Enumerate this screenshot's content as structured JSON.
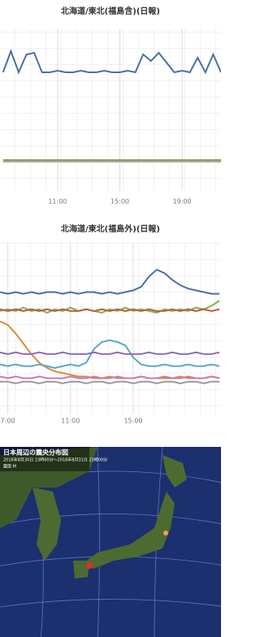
{
  "chart_data": [
    {
      "type": "line",
      "title": "北海道/東北(福島含)(日報)",
      "x": [
        7.5,
        8,
        8.5,
        9,
        9.5,
        10,
        10.5,
        11,
        11.5,
        12,
        12.5,
        13,
        13.5,
        14,
        14.5,
        15,
        15.5,
        16,
        16.5,
        17,
        17.5,
        18,
        18.5,
        19,
        19.5,
        20,
        20.5,
        21,
        21.5
      ],
      "xlim": [
        7.3,
        21.5
      ],
      "xticks": [
        {
          "value": 11,
          "label": "11:00"
        },
        {
          "value": 15,
          "label": "15:00"
        },
        {
          "value": 19,
          "label": "19:00"
        }
      ],
      "ylim": [
        0,
        100
      ],
      "grid": true,
      "series": [
        {
          "color": "#4a6fa5",
          "values": [
            73,
            86,
            73,
            84,
            85,
            73,
            73,
            74,
            73,
            73,
            74,
            73,
            73,
            74,
            73,
            73,
            74,
            73,
            84,
            80,
            85,
            79,
            73,
            74,
            73,
            82,
            73,
            84,
            73
          ]
        },
        {
          "color": "#9a9a5a",
          "values": [
            19,
            19,
            19,
            19,
            19,
            19,
            19,
            19,
            19,
            19,
            19,
            19,
            19,
            19,
            19,
            19,
            19,
            19,
            19,
            19,
            19,
            19,
            19,
            19,
            19,
            19,
            19,
            19,
            19
          ]
        },
        {
          "color": "#aaaaaa",
          "values": [
            18,
            18,
            18,
            18,
            18,
            18,
            18,
            18,
            18,
            18,
            18,
            18,
            18,
            18,
            18,
            18,
            18,
            18,
            18,
            18,
            18,
            18,
            18,
            18,
            18,
            18,
            18,
            18,
            18
          ]
        }
      ]
    },
    {
      "type": "line",
      "title": "北海道/東北(福島外)(日報)",
      "x": [
        6.5,
        7,
        7.5,
        8,
        8.5,
        9,
        9.5,
        10,
        10.5,
        11,
        11.5,
        12,
        12.5,
        13,
        13.5,
        14,
        14.5,
        15,
        15.5,
        16,
        16.5,
        17,
        17.5,
        18,
        18.5,
        19,
        19.5,
        20,
        20.5
      ],
      "xlim": [
        6.5,
        20.6
      ],
      "xticks": [
        {
          "value": 7,
          "label": "7:00"
        },
        {
          "value": 11,
          "label": "11:00"
        },
        {
          "value": 15,
          "label": "15:00"
        }
      ],
      "ylim": [
        0,
        100
      ],
      "grid": true,
      "series": [
        {
          "color": "#4a6fa5",
          "values": [
            71,
            70,
            71,
            70,
            71,
            70,
            71,
            71,
            70,
            71,
            70,
            71,
            71,
            70,
            71,
            70,
            71,
            72,
            74,
            80,
            84,
            82,
            78,
            75,
            73,
            72,
            71,
            70,
            70
          ]
        },
        {
          "color": "#8ab04a",
          "values": [
            60,
            61,
            60,
            62,
            60,
            61,
            59,
            61,
            60,
            62,
            60,
            61,
            60,
            59,
            61,
            60,
            62,
            60,
            61,
            60,
            59,
            61,
            60,
            61,
            60,
            62,
            61,
            63,
            66
          ]
        },
        {
          "color": "#b85c3c",
          "values": [
            61,
            60,
            61,
            60,
            61,
            60,
            61,
            60,
            61,
            60,
            60,
            61,
            60,
            61,
            60,
            61,
            60,
            61,
            60,
            61,
            60,
            60,
            61,
            60,
            61,
            60,
            61,
            60,
            61
          ]
        },
        {
          "color": "#e08a3c",
          "values": [
            54,
            52,
            47,
            41,
            35,
            30,
            27,
            25,
            24,
            23,
            22,
            22,
            21,
            21,
            22,
            21,
            21,
            21,
            22,
            21,
            21,
            21,
            21,
            22,
            21,
            21,
            21,
            22,
            21
          ]
        },
        {
          "color": "#5aa8c8",
          "values": [
            29,
            28,
            29,
            28,
            28,
            29,
            28,
            27,
            28,
            29,
            28,
            30,
            38,
            42,
            43,
            42,
            40,
            33,
            29,
            28,
            28,
            29,
            28,
            28,
            29,
            28,
            28,
            29,
            28
          ]
        },
        {
          "color": "#8a6ab0",
          "values": [
            36,
            35,
            36,
            35,
            35,
            36,
            35,
            35,
            36,
            35,
            35,
            35,
            36,
            35,
            35,
            36,
            35,
            35,
            35,
            36,
            35,
            35,
            36,
            35,
            35,
            36,
            35,
            35,
            36
          ]
        },
        {
          "color": "#c87ab0",
          "values": [
            22,
            21,
            22,
            21,
            21,
            22,
            21,
            21,
            21,
            22,
            21,
            21,
            22,
            21,
            21,
            22,
            21,
            21,
            22,
            21,
            21,
            22,
            21,
            21,
            22,
            21,
            21,
            22,
            21
          ]
        },
        {
          "color": "#999999",
          "values": [
            19,
            19,
            18,
            19,
            19,
            18,
            19,
            19,
            18,
            19,
            19,
            18,
            19,
            19,
            18,
            19,
            19,
            18,
            19,
            19,
            18,
            19,
            19,
            18,
            19,
            19,
            18,
            19,
            19
          ]
        }
      ]
    }
  ],
  "map": {
    "title": "日本周辺の震央分布図",
    "subtitle": "2016年8月30日 23時00分～2016年8月31日 23時00分",
    "legend": "震度:M"
  }
}
